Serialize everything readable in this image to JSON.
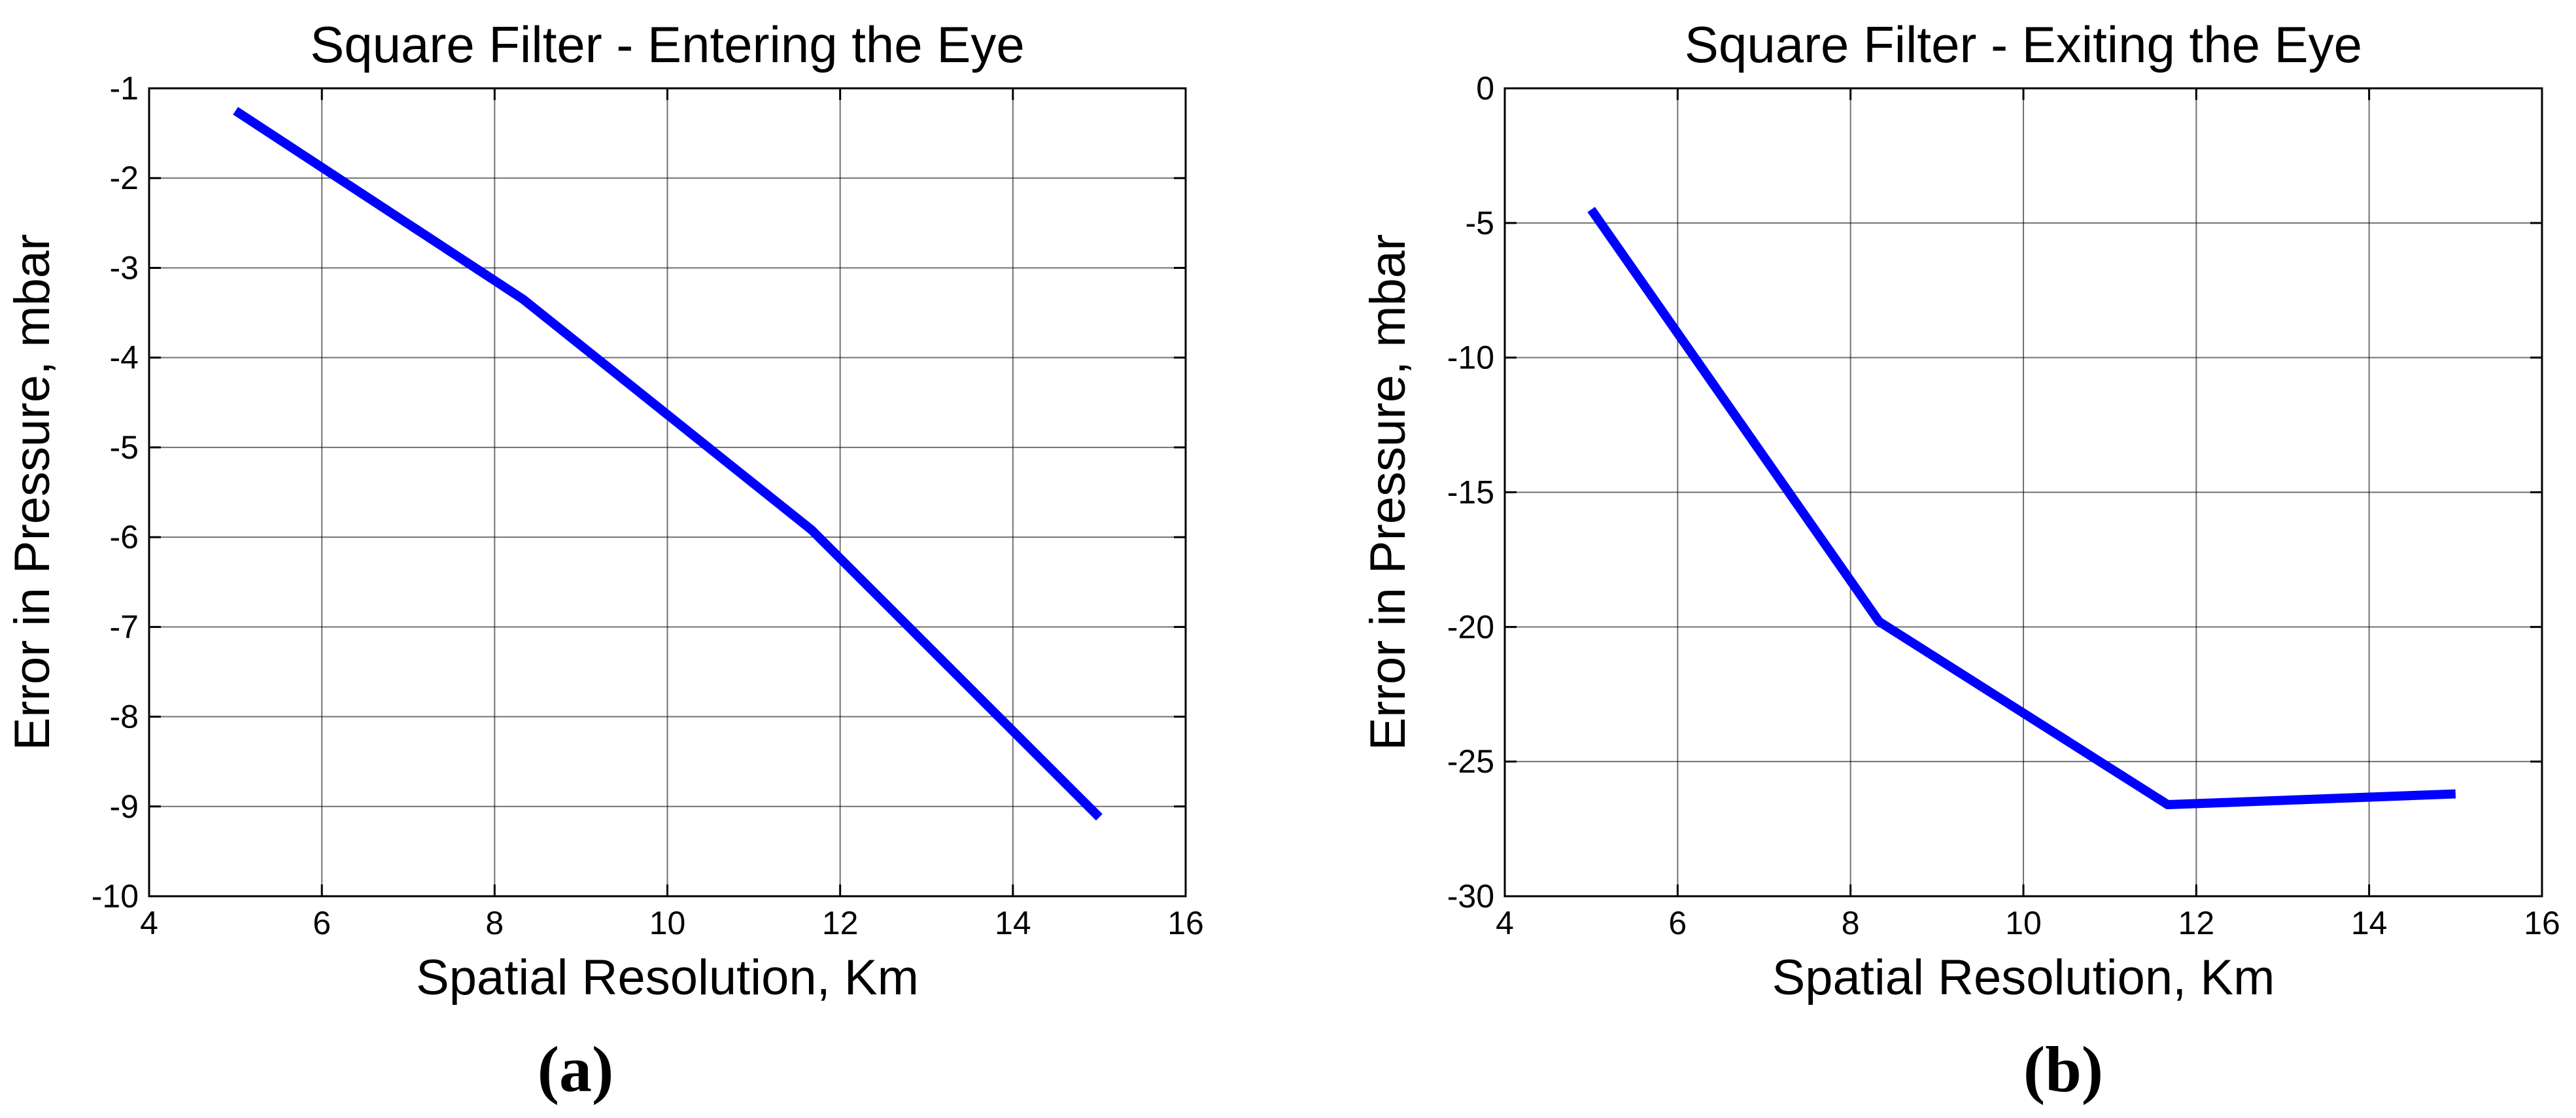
{
  "chart_data": [
    {
      "type": "line",
      "title": "Square Filter - Entering the Eye",
      "xlabel": "Spatial Resolution, Km",
      "ylabel": "Error in Pressure, mbar",
      "xlim": [
        4,
        16
      ],
      "ylim": [
        -10,
        -1
      ],
      "xticks": [
        4,
        6,
        8,
        10,
        12,
        14,
        16
      ],
      "yticks": [
        -10,
        -9,
        -8,
        -7,
        -6,
        -5,
        -4,
        -3,
        -2,
        -1
      ],
      "x_tick_labels": [
        "4",
        "6",
        "8",
        "10",
        "12",
        "14",
        "16"
      ],
      "y_tick_labels": [
        "-10",
        "-9",
        "-8",
        "-7",
        "-6",
        "-5",
        "-4",
        "-3",
        "-2",
        "-1"
      ],
      "grid": true,
      "panel_label": "(a)",
      "series": [
        {
          "color": "#0000ff",
          "x": [
            5,
            8.33,
            11.67,
            15
          ],
          "y": [
            -1.25,
            -3.35,
            -5.92,
            -9.12
          ]
        }
      ]
    },
    {
      "type": "line",
      "title": "Square Filter - Exiting the Eye",
      "xlabel": "Spatial Resolution, Km",
      "ylabel": "Error in Pressure, mbar",
      "xlim": [
        4,
        16
      ],
      "ylim": [
        -30,
        0
      ],
      "xticks": [
        4,
        6,
        8,
        10,
        12,
        14,
        16
      ],
      "yticks": [
        -30,
        -25,
        -20,
        -15,
        -10,
        -5,
        0
      ],
      "x_tick_labels": [
        "4",
        "6",
        "8",
        "10",
        "12",
        "14",
        "16"
      ],
      "y_tick_labels": [
        "-30",
        "-25",
        "-20",
        "-15",
        "-10",
        "-5",
        "0"
      ],
      "grid": true,
      "panel_label": "(b)",
      "series": [
        {
          "color": "#0000ff",
          "x": [
            5,
            8.33,
            11.67,
            15
          ],
          "y": [
            -4.5,
            -19.8,
            -26.6,
            -26.2
          ]
        }
      ]
    }
  ]
}
